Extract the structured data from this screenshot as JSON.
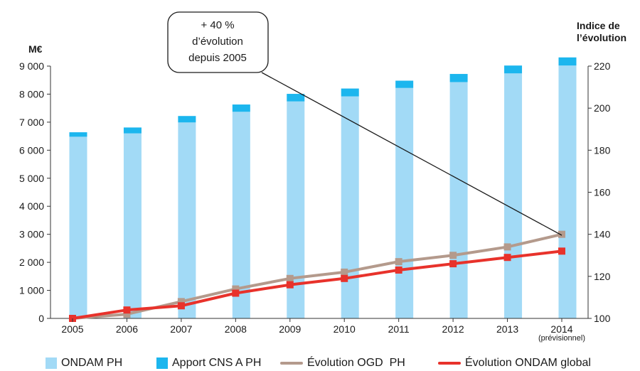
{
  "chart_data": {
    "type": "bar",
    "title": "",
    "categories": [
      "2005",
      "2006",
      "2007",
      "2008",
      "2009",
      "2010",
      "2011",
      "2012",
      "2013",
      "2014"
    ],
    "category_note": {
      "index": 9,
      "text": "(prévisionnel)"
    },
    "y_left": {
      "label": "M€",
      "min": 0,
      "max": 9000,
      "ticks": [
        0,
        1000,
        2000,
        3000,
        4000,
        5000,
        6000,
        7000,
        8000,
        9000
      ],
      "tick_labels": [
        "0",
        "1 000",
        "2 000",
        "3 000",
        "4 000",
        "5 000",
        "6 000",
        "7 000",
        "8 000",
        "9 000"
      ]
    },
    "y_right": {
      "label_line1": "Indice de",
      "label_line2": "l’évolution",
      "min": 100,
      "max": 220,
      "ticks": [
        100,
        120,
        140,
        160,
        180,
        200,
        220
      ]
    },
    "series": [
      {
        "name": "ONDAM PH",
        "kind": "bar-stack",
        "axis": "left",
        "color": "#a2daf6",
        "values": [
          6480,
          6600,
          6990,
          7370,
          7740,
          7920,
          8220,
          8430,
          8740,
          9020
        ]
      },
      {
        "name": "Apport CNS A PH",
        "kind": "bar-stack",
        "axis": "left",
        "color": "#1cb6ee",
        "values": [
          160,
          210,
          230,
          260,
          270,
          280,
          260,
          290,
          280,
          290
        ]
      },
      {
        "name": "Évolution OGD  PH",
        "kind": "line",
        "axis": "right",
        "color": "#b49a8c",
        "values": [
          100,
          102,
          108,
          114,
          119,
          122,
          127,
          130,
          134,
          140
        ]
      },
      {
        "name": "Évolution ONDAM global",
        "kind": "line",
        "axis": "right",
        "color": "#e8322b",
        "values": [
          100,
          104,
          106,
          112,
          116,
          119,
          123,
          126,
          129,
          132
        ]
      }
    ],
    "annotation": {
      "lines": [
        "+ 40 %",
        "d’évolution",
        "depuis 2005"
      ],
      "points_to_category": "2014",
      "points_to_series": "Évolution OGD  PH"
    },
    "grid": false,
    "legend_position": "bottom"
  }
}
